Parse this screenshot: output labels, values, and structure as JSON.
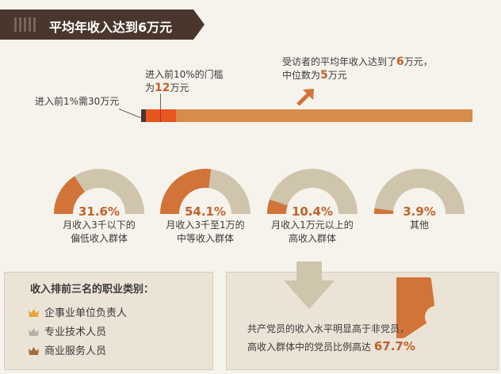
{
  "header": {
    "title": "平均年收入达到6万元"
  },
  "bar": {
    "label_top1": "进入前1%需30万元",
    "label_top10_line1": "进入前10%的门槛",
    "label_top10_line2_prefix": "为",
    "label_top10_value": "12",
    "label_top10_line2_suffix": "万元",
    "summary_line1_prefix": "受访者的平均年收入达到了",
    "summary_line1_value": "6",
    "summary_line1_suffix": "万元，",
    "summary_line2_prefix": "中位数为",
    "summary_line2_value": "5",
    "summary_line2_suffix": "万元"
  },
  "chart_data": {
    "type": "pie",
    "categories": [
      "月收入3千以下的偏低收入群体",
      "月收入3千至1万的中等收入群体",
      "月收入1万元以上的高收入群体",
      "其他"
    ],
    "values": [
      31.6,
      54.1,
      10.4,
      3.9
    ],
    "unit": "%",
    "pct_labels": [
      "31.6%",
      "54.1%",
      "10.4%",
      "3.9%"
    ],
    "labels_line1": [
      "月收入3千以下的",
      "月收入3千至1万的",
      "月收入1万元以上的",
      "其他"
    ],
    "labels_line2": [
      "偏低收入群体",
      "中等收入群体",
      "高收入群体",
      ""
    ]
  },
  "occupations": {
    "title": "收入排前三名的职业类别：",
    "items": [
      {
        "label": "企事业单位负责人",
        "icon": "crown-gold-icon",
        "color": "#e8a33a"
      },
      {
        "label": "专业技术人员",
        "icon": "crown-silver-icon",
        "color": "#b7b1a8"
      },
      {
        "label": "商业服务人员",
        "icon": "crown-bronze-icon",
        "color": "#a56a3d"
      }
    ]
  },
  "party": {
    "line1": "共产党员的收入水平明显高于非党员，",
    "line2": "高收入群体中的党员比例高达",
    "pct_label": "67.7%",
    "value": 67.7
  },
  "colors": {
    "accent": "#d2743a",
    "track": "#cfc5ad",
    "banner": "#4a362d"
  }
}
